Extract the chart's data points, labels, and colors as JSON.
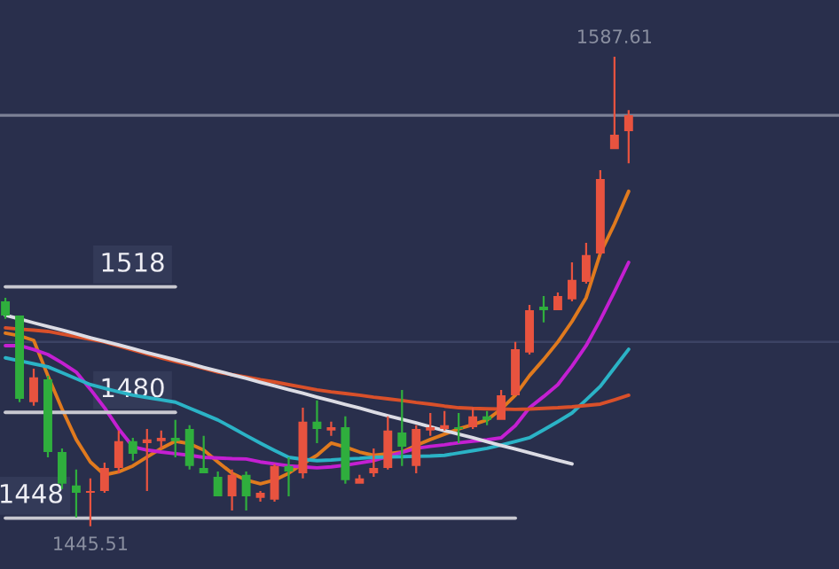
{
  "chart_data": {
    "type": "candlestick",
    "categories": [
      null,
      null,
      null,
      null,
      null,
      null,
      null,
      null,
      null,
      null,
      null,
      null,
      null,
      null,
      null,
      null,
      null,
      null,
      null,
      null,
      null,
      null,
      null,
      null,
      null,
      null,
      null,
      null,
      null,
      null,
      null,
      null,
      null,
      null,
      null,
      null,
      null,
      null,
      null,
      null,
      null,
      null,
      null,
      null,
      null
    ],
    "ohlc": [
      [
        1513.6,
        1514.7,
        1508.3,
        1509.3
      ],
      [
        1509.3,
        1509.3,
        1483.1,
        1484.1
      ],
      [
        1483.1,
        1493.2,
        1482.0,
        1490.6
      ],
      [
        1490.0,
        1491.1,
        1466.4,
        1468.0
      ],
      [
        1468.0,
        1469.1,
        1456.8,
        1458.4
      ],
      [
        1457.9,
        1462.7,
        1448.2,
        1455.7
      ],
      [
        1455.7,
        1460.0,
        1445.51,
        1456.2
      ],
      [
        1456.2,
        1464.8,
        1455.7,
        1463.2
      ],
      [
        1463.2,
        1474.5,
        1461.6,
        1471.3
      ],
      [
        1471.3,
        1472.3,
        1465.4,
        1467.5
      ],
      [
        1470.7,
        1475.0,
        1456.2,
        1471.8
      ],
      [
        1471.3,
        1474.5,
        1469.1,
        1472.3
      ],
      [
        1472.3,
        1477.7,
        1466.4,
        1471.3
      ],
      [
        1475.0,
        1476.1,
        1462.7,
        1463.8
      ],
      [
        1463.2,
        1472.9,
        1461.6,
        1461.6
      ],
      [
        1460.5,
        1462.1,
        1454.6,
        1454.6
      ],
      [
        1454.6,
        1462.7,
        1450.3,
        1461.1
      ],
      [
        1461.1,
        1462.1,
        1450.3,
        1454.6
      ],
      [
        1454.1,
        1456.2,
        1453.0,
        1455.7
      ],
      [
        1453.6,
        1464.3,
        1453.0,
        1463.8
      ],
      [
        1463.8,
        1466.4,
        1454.6,
        1462.1
      ],
      [
        1461.6,
        1481.4,
        1460.0,
        1477.2
      ],
      [
        1477.2,
        1483.6,
        1470.7,
        1475.0
      ],
      [
        1474.5,
        1477.2,
        1472.9,
        1475.5
      ],
      [
        1475.5,
        1478.8,
        1458.4,
        1459.5
      ],
      [
        1458.4,
        1461.1,
        1458.4,
        1460.0
      ],
      [
        1461.6,
        1469.1,
        1460.5,
        1463.2
      ],
      [
        1463.2,
        1478.8,
        1462.7,
        1474.5
      ],
      [
        1473.9,
        1486.8,
        1463.8,
        1469.6
      ],
      [
        1463.8,
        1476.1,
        1461.6,
        1475.0
      ],
      [
        1474.5,
        1479.8,
        1472.9,
        1475.5
      ],
      [
        1475.0,
        1480.4,
        1474.5,
        1476.1
      ],
      [
        1475.5,
        1479.8,
        1470.7,
        1475.0
      ],
      [
        1475.5,
        1481.4,
        1475.0,
        1478.8
      ],
      [
        1478.8,
        1480.4,
        1476.1,
        1477.7
      ],
      [
        1477.7,
        1486.8,
        1477.7,
        1485.2
      ],
      [
        1485.2,
        1501.3,
        1485.2,
        1499.1
      ],
      [
        1498.1,
        1512.5,
        1497.5,
        1510.9
      ],
      [
        1512.0,
        1515.2,
        1507.2,
        1510.9
      ],
      [
        1510.9,
        1516.3,
        1510.9,
        1515.2
      ],
      [
        1514.2,
        1525.4,
        1513.6,
        1520.1
      ],
      [
        1519.5,
        1531.3,
        1519.0,
        1527.6
      ],
      [
        1528.1,
        1553.3,
        1527.6,
        1550.6
      ],
      [
        1559.7,
        1587.61,
        1559.7,
        1564.0
      ],
      [
        1565.1,
        1571.5,
        1555.4,
        1569.9
      ]
    ],
    "colors": [
      "#2fae3d",
      "#2fae3d",
      "#e8533f",
      "#2fae3d",
      "#2fae3d",
      "#2fae3d",
      "#e8533f",
      "#e8533f",
      "#e8533f",
      "#2fae3d",
      "#e8533f",
      "#e8533f",
      "#2fae3d",
      "#2fae3d",
      "#2fae3d",
      "#2fae3d",
      "#e8533f",
      "#2fae3d",
      "#e8533f",
      "#e8533f",
      "#2fae3d",
      "#e8533f",
      "#2fae3d",
      "#e8533f",
      "#2fae3d",
      "#e8533f",
      "#e8533f",
      "#e8533f",
      "#2fae3d",
      "#e8533f",
      "#e8533f",
      "#e8533f",
      "#2fae3d",
      "#e8533f",
      "#2fae3d",
      "#e8533f",
      "#e8533f",
      "#e8533f",
      "#2fae3d",
      "#e8533f",
      "#e8533f",
      "#e8533f",
      "#e8533f",
      "#e8533f",
      "#e8533f"
    ],
    "series": [
      {
        "type": "line",
        "color": "#e07a1e",
        "values": [
          1504.0,
          1503.2,
          1501.8,
          1491.1,
          1481.0,
          1471.8,
          1465.0,
          1461.1,
          1462.0,
          1463.8,
          1466.5,
          1469.1,
          1471.3,
          1470.5,
          1468.6,
          1465.0,
          1461.6,
          1459.5,
          1458.4,
          1459.5,
          1461.6,
          1464.5,
          1467.0,
          1470.7,
          1469.5,
          1468.0,
          1467.0,
          1467.5,
          1468.0,
          1470.0,
          1471.8,
          1473.4,
          1475.0,
          1476.3,
          1477.7,
          1481.0,
          1485.2,
          1491.1,
          1496.0,
          1501.3,
          1507.5,
          1514.7,
          1528.1,
          1537.0,
          1546.9
        ]
      },
      {
        "type": "line",
        "color": "#c41fd2",
        "values": [
          1500.2,
          1500.2,
          1499.0,
          1497.5,
          1495.0,
          1492.2,
          1487.0,
          1481.4,
          1475.0,
          1469.6,
          1468.6,
          1468.0,
          1467.5,
          1467.0,
          1466.4,
          1466.2,
          1466.0,
          1465.9,
          1465.0,
          1464.4,
          1463.8,
          1463.5,
          1463.2,
          1463.5,
          1464.0,
          1464.7,
          1465.4,
          1466.6,
          1467.9,
          1469.1,
          1469.7,
          1470.2,
          1470.8,
          1471.3,
          1471.7,
          1472.3,
          1476.0,
          1481.4,
          1484.8,
          1488.4,
          1494.0,
          1500.2,
          1508.0,
          1516.5,
          1525.4
        ]
      },
      {
        "type": "line",
        "color": "#2bb3c6",
        "values": [
          1496.5,
          1495.6,
          1494.7,
          1493.8,
          1492.0,
          1490.2,
          1488.4,
          1487.3,
          1486.2,
          1485.2,
          1484.5,
          1483.8,
          1483.1,
          1481.3,
          1479.5,
          1477.7,
          1475.4,
          1473.0,
          1470.7,
          1468.5,
          1466.4,
          1465.8,
          1465.4,
          1465.6,
          1465.9,
          1466.1,
          1466.4,
          1466.5,
          1466.6,
          1466.7,
          1466.8,
          1467.0,
          1467.7,
          1468.4,
          1469.1,
          1470.1,
          1471.2,
          1472.3,
          1474.7,
          1477.2,
          1479.8,
          1483.8,
          1487.9,
          1493.5,
          1499.1
        ]
      },
      {
        "type": "line",
        "color": "#d9502a",
        "values": [
          1505.6,
          1505.2,
          1504.9,
          1504.5,
          1503.7,
          1502.9,
          1502.1,
          1501.3,
          1500.1,
          1498.9,
          1497.7,
          1496.5,
          1495.4,
          1494.4,
          1493.3,
          1492.2,
          1491.4,
          1490.7,
          1489.9,
          1489.2,
          1488.4,
          1487.6,
          1486.8,
          1486.2,
          1485.7,
          1485.2,
          1484.6,
          1484.1,
          1483.6,
          1483.0,
          1482.5,
          1481.9,
          1481.4,
          1481.2,
          1481.1,
          1481.0,
          1480.9,
          1481.0,
          1481.2,
          1481.4,
          1481.7,
          1482.1,
          1482.5,
          1483.8,
          1485.2
        ]
      },
      {
        "type": "line",
        "color": "#dcdce4",
        "values": [
          1509.4,
          1508.3,
          1507.1,
          1506.0,
          1504.9,
          1503.8,
          1502.6,
          1501.5,
          1500.4,
          1499.3,
          1498.1,
          1497.0,
          1495.9,
          1494.8,
          1493.6,
          1492.5,
          1491.4,
          1490.3,
          1489.1,
          1488.0,
          1486.9,
          1485.8,
          1484.6,
          1483.5,
          1482.4,
          1481.3,
          1480.1,
          1479.0,
          1477.9,
          1476.8,
          1475.6,
          1474.5,
          1473.4,
          1472.3,
          1471.1,
          1470.0,
          1468.9,
          1467.8,
          1466.6,
          1465.5,
          1464.4,
          null,
          null,
          null,
          null
        ]
      },
      {
        "type": "line",
        "color": "#c8c8d0",
        "name": "1518",
        "values": [
          1518,
          1518,
          1518,
          1518,
          1518,
          1518,
          1518,
          1518,
          1518,
          1518,
          1518,
          1518,
          1518,
          null,
          null,
          null,
          null,
          null,
          null,
          null,
          null,
          null,
          null,
          null,
          null,
          null,
          null,
          null,
          null,
          null,
          null,
          null,
          null,
          null,
          null,
          null,
          null,
          null,
          null,
          null,
          null,
          null,
          null,
          null,
          null
        ]
      },
      {
        "type": "line",
        "color": "#c8c8d0",
        "name": "1480",
        "values": [
          1480,
          1480,
          1480,
          1480,
          1480,
          1480,
          1480,
          1480,
          1480,
          1480,
          1480,
          1480,
          1480,
          null,
          null,
          null,
          null,
          null,
          null,
          null,
          null,
          null,
          null,
          null,
          null,
          null,
          null,
          null,
          null,
          null,
          null,
          null,
          null,
          null,
          null,
          null,
          null,
          null,
          null,
          null,
          null,
          null,
          null,
          null,
          null
        ]
      },
      {
        "type": "line",
        "color": "#c8c8d0",
        "name": "1448",
        "values": [
          1448,
          1448,
          1448,
          1448,
          1448,
          1448,
          1448,
          1448,
          1448,
          1448,
          1448,
          1448,
          1448,
          1448,
          1448,
          1448,
          1448,
          1448,
          1448,
          1448,
          1448,
          1448,
          1448,
          1448,
          1448,
          1448,
          1448,
          1448,
          1448,
          1448,
          1448,
          1448,
          1448,
          1448,
          1448,
          1448,
          1448,
          null,
          null,
          null,
          null,
          null,
          null,
          null,
          null
        ]
      }
    ],
    "ref_lines": [
      {
        "axis": "y",
        "value": 1569.9,
        "color": "#7d8296"
      }
    ],
    "annotations": [
      {
        "text": "1445.51",
        "y": 1445.51
      },
      {
        "text": "1587.61",
        "y": 1587.61
      }
    ],
    "ylim": [
      1432.6,
      1604.8
    ],
    "yticks": [
      {
        "value": 1501.3,
        "label": null
      }
    ],
    "grid": "y"
  }
}
